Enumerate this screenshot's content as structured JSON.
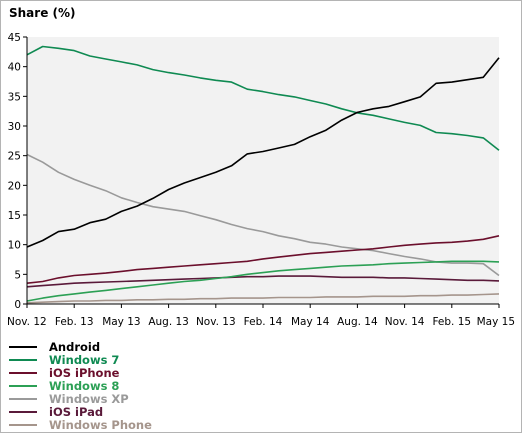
{
  "chart_data": {
    "type": "line",
    "title": "",
    "ylabel": "Share (%)",
    "xlabel": "",
    "ylim": [
      0,
      45
    ],
    "yticks": [
      0,
      5,
      10,
      15,
      20,
      25,
      30,
      35,
      40,
      45
    ],
    "grid": "none",
    "plot_background": "#f2f2f2",
    "legend_placement": "bottom-left",
    "x": [
      "2012-11",
      "2012-12",
      "2013-01",
      "2013-02",
      "2013-03",
      "2013-04",
      "2013-05",
      "2013-06",
      "2013-07",
      "2013-08",
      "2013-09",
      "2013-10",
      "2013-11",
      "2013-12",
      "2014-01",
      "2014-02",
      "2014-03",
      "2014-04",
      "2014-05",
      "2014-06",
      "2014-07",
      "2014-08",
      "2014-09",
      "2014-10",
      "2014-11",
      "2014-12",
      "2015-01",
      "2015-02",
      "2015-03",
      "2015-04",
      "2015-05"
    ],
    "xticks": [
      {
        "x": "2012-11",
        "label": "Nov. 12"
      },
      {
        "x": "2013-02",
        "label": "Feb. 13"
      },
      {
        "x": "2013-05",
        "label": "May 13"
      },
      {
        "x": "2013-08",
        "label": "Aug. 13"
      },
      {
        "x": "2013-11",
        "label": "Nov. 13"
      },
      {
        "x": "2014-02",
        "label": "Feb. 14"
      },
      {
        "x": "2014-05",
        "label": "May 14"
      },
      {
        "x": "2014-08",
        "label": "Aug. 14"
      },
      {
        "x": "2014-11",
        "label": "Nov. 14"
      },
      {
        "x": "2015-02",
        "label": "Feb. 15"
      },
      {
        "x": "2015-05",
        "label": "May 15"
      }
    ],
    "series": [
      {
        "name": "Android",
        "color": "#000000",
        "values": [
          9.6,
          10.7,
          12.2,
          12.6,
          13.7,
          14.3,
          15.6,
          16.5,
          17.8,
          19.3,
          20.4,
          21.3,
          22.2,
          23.3,
          25.3,
          25.7,
          26.3,
          26.9,
          28.2,
          29.3,
          31.0,
          32.3,
          32.9,
          33.3,
          34.1,
          34.9,
          37.2,
          37.4,
          37.8,
          38.2,
          41.5
        ]
      },
      {
        "name": "Windows 7",
        "color": "#0f8a52",
        "values": [
          42.0,
          43.4,
          43.1,
          42.7,
          41.8,
          41.3,
          40.8,
          40.3,
          39.5,
          39.0,
          38.6,
          38.1,
          37.7,
          37.4,
          36.2,
          35.8,
          35.3,
          34.9,
          34.3,
          33.7,
          32.9,
          32.2,
          31.8,
          31.2,
          30.6,
          30.1,
          28.9,
          28.7,
          28.4,
          28.0,
          25.9
        ]
      },
      {
        "name": "iOS iPhone",
        "color": "#6b0f2c",
        "values": [
          3.5,
          3.8,
          4.4,
          4.8,
          5.0,
          5.2,
          5.5,
          5.8,
          6.0,
          6.2,
          6.4,
          6.6,
          6.8,
          7.0,
          7.2,
          7.6,
          7.9,
          8.2,
          8.5,
          8.7,
          8.9,
          9.1,
          9.3,
          9.6,
          9.9,
          10.1,
          10.3,
          10.4,
          10.6,
          10.9,
          11.5
        ]
      },
      {
        "name": "Windows 8",
        "color": "#2ca055",
        "values": [
          0.5,
          1.0,
          1.4,
          1.7,
          2.0,
          2.3,
          2.6,
          2.9,
          3.2,
          3.5,
          3.8,
          4.0,
          4.3,
          4.6,
          5.0,
          5.3,
          5.6,
          5.8,
          6.0,
          6.2,
          6.4,
          6.5,
          6.6,
          6.8,
          6.9,
          7.0,
          7.1,
          7.2,
          7.2,
          7.2,
          7.1
        ]
      },
      {
        "name": "Windows XP",
        "color": "#9a9a9a",
        "values": [
          25.2,
          23.9,
          22.2,
          21.0,
          20.0,
          19.1,
          17.9,
          17.1,
          16.4,
          16.0,
          15.6,
          14.9,
          14.2,
          13.4,
          12.7,
          12.2,
          11.5,
          11.0,
          10.4,
          10.1,
          9.6,
          9.3,
          9.0,
          8.5,
          8.0,
          7.6,
          7.1,
          6.9,
          6.9,
          6.8,
          4.8
        ]
      },
      {
        "name": "iOS iPad",
        "color": "#5a1a3a",
        "values": [
          2.9,
          3.1,
          3.3,
          3.5,
          3.6,
          3.7,
          3.8,
          3.9,
          4.0,
          4.1,
          4.2,
          4.3,
          4.4,
          4.5,
          4.6,
          4.6,
          4.7,
          4.7,
          4.7,
          4.6,
          4.5,
          4.5,
          4.5,
          4.4,
          4.4,
          4.3,
          4.2,
          4.1,
          4.0,
          4.0,
          3.9
        ]
      },
      {
        "name": "Windows Phone",
        "color": "#a5958c",
        "values": [
          0.2,
          0.3,
          0.4,
          0.5,
          0.5,
          0.6,
          0.6,
          0.7,
          0.7,
          0.8,
          0.8,
          0.9,
          0.9,
          1.0,
          1.0,
          1.0,
          1.1,
          1.1,
          1.1,
          1.2,
          1.2,
          1.2,
          1.3,
          1.3,
          1.3,
          1.4,
          1.4,
          1.5,
          1.5,
          1.6,
          1.7
        ]
      }
    ]
  }
}
